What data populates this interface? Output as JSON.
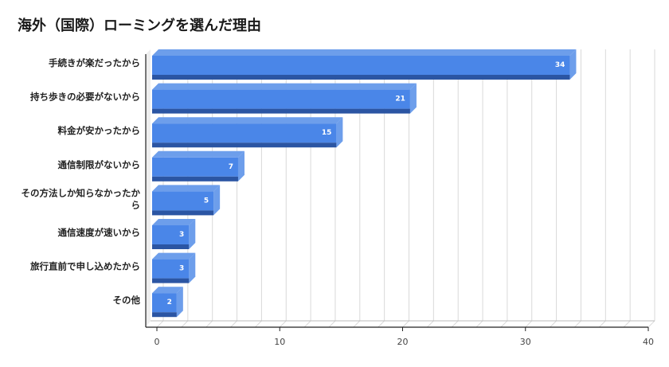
{
  "chart_data": {
    "type": "bar",
    "orientation": "horizontal",
    "style": "3d",
    "title": "海外（国際）ローミングを選んだ理由",
    "xlabel": "",
    "ylabel": "",
    "categories": [
      [
        "手続きが楽だったから"
      ],
      [
        "持ち歩きの必要がないから"
      ],
      [
        "料金が安かったから"
      ],
      [
        "通信制限がないから"
      ],
      [
        "その方法しか知らなかったか",
        "ら"
      ],
      [
        "通信速度が速いから"
      ],
      [
        "旅行直前で申し込めたから"
      ],
      [
        "その他"
      ]
    ],
    "values": [
      34,
      21,
      15,
      7,
      5,
      3,
      3,
      2
    ],
    "xlim": [
      0,
      40
    ],
    "xticks": [
      0,
      10,
      20,
      30,
      40
    ],
    "grid": true,
    "legend": "none",
    "colors": {
      "bar_front": "#4a86e8",
      "bar_side": "#6d9eeb",
      "bar_bottom": "#2b55a3",
      "wall": "#eeeeee",
      "grid": "#d9d9d9",
      "axis": "#222222"
    }
  }
}
